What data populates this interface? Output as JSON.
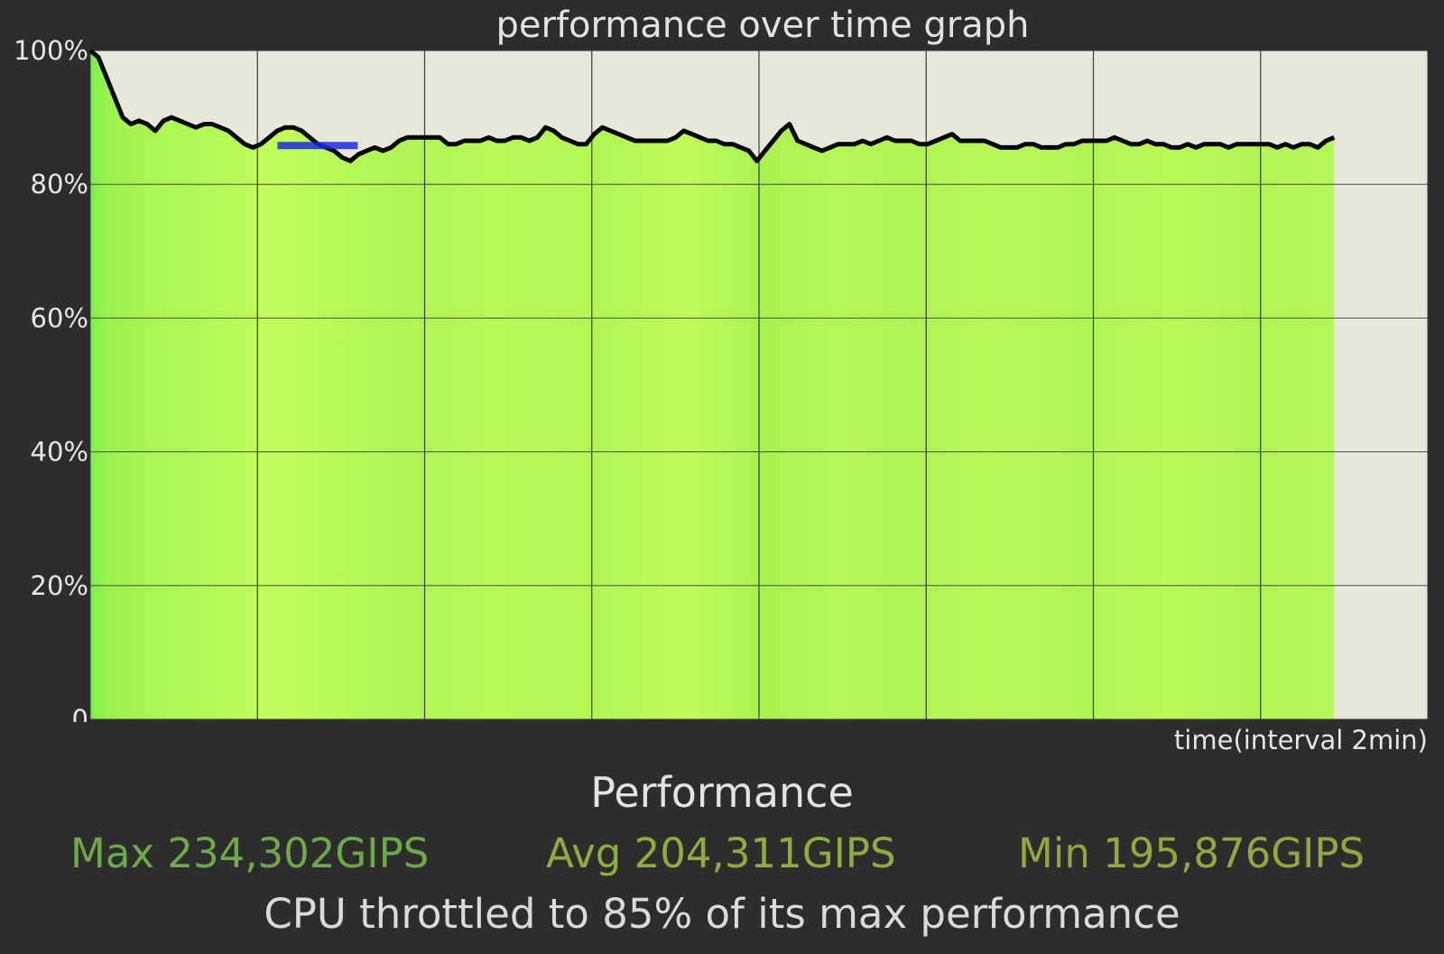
{
  "chart": {
    "title": "performance over time graph",
    "x_axis_label": "time(interval 2min)"
  },
  "stats": {
    "section_title": "Performance",
    "max": "Max 234,302GIPS",
    "avg": "Avg 204,311GIPS",
    "min": "Min 195,876GIPS",
    "summary": "CPU throttled to 85% of its max performance"
  },
  "colors": {
    "background": "#2d2d2d",
    "plot_background": "#e8e8d9",
    "fill_light": "#c8ff5a",
    "fill_dark": "#92f04c",
    "line": "#000000",
    "highlight": "#1a2be0",
    "max_text": "#6cab4a",
    "avg_text": "#8aaf3e",
    "min_text": "#90a83d"
  },
  "chart_data": {
    "type": "area",
    "title": "performance over time graph",
    "xlabel": "time(interval 2min)",
    "ylabel": "",
    "ylim": [
      0,
      100
    ],
    "y_ticks": [
      "0",
      "20%",
      "40%",
      "60%",
      "80%",
      "100%"
    ],
    "x_interval_minutes": 2,
    "x_grid_intervals": 8,
    "data_fraction_of_x": 0.93,
    "grid": true,
    "min_marker": {
      "x_start": 0.14,
      "x_end": 0.2,
      "y": 85.8
    },
    "series": [
      {
        "values": [
          100,
          99,
          96,
          93,
          90,
          89,
          89.5,
          89,
          88,
          89.5,
          90,
          89.5,
          89,
          88.5,
          89,
          89,
          88.5,
          88,
          87,
          86,
          85.5,
          86,
          87,
          88,
          88.5,
          88.5,
          88,
          87,
          86,
          85.5,
          85,
          84,
          83.5,
          84.5,
          85,
          85.5,
          85,
          85.5,
          86.5,
          87,
          87,
          87,
          87,
          87,
          86,
          86,
          86.5,
          86.5,
          86.5,
          87,
          86.5,
          86.5,
          87,
          87,
          86.5,
          87,
          88.5,
          88,
          87,
          86.5,
          86,
          86,
          87.5,
          88.5,
          88,
          87.5,
          87,
          86.5,
          86.5,
          86.5,
          86.5,
          86.5,
          87,
          88,
          87.5,
          87,
          86.5,
          86.5,
          86,
          86,
          85.5,
          85,
          83.5,
          85,
          86.5,
          88,
          89,
          86.5,
          86,
          85.5,
          85,
          85.5,
          86,
          86,
          86,
          86.5,
          86,
          86.5,
          87,
          86.5,
          86.5,
          86.5,
          86,
          86,
          86.5,
          87,
          87.5,
          86.5,
          86.5,
          86.5,
          86.5,
          86,
          85.5,
          85.5,
          85.5,
          86,
          86,
          85.5,
          85.5,
          85.5,
          86,
          86,
          86.5,
          86.5,
          86.5,
          86.5,
          87,
          86.5,
          86,
          86,
          86.5,
          86,
          86,
          85.5,
          85.5,
          86,
          85.5,
          86,
          86,
          86,
          85.5,
          86,
          86,
          86,
          86,
          86,
          85.5,
          86,
          85.5,
          86,
          86,
          85.5,
          86.5,
          87
        ]
      }
    ]
  }
}
